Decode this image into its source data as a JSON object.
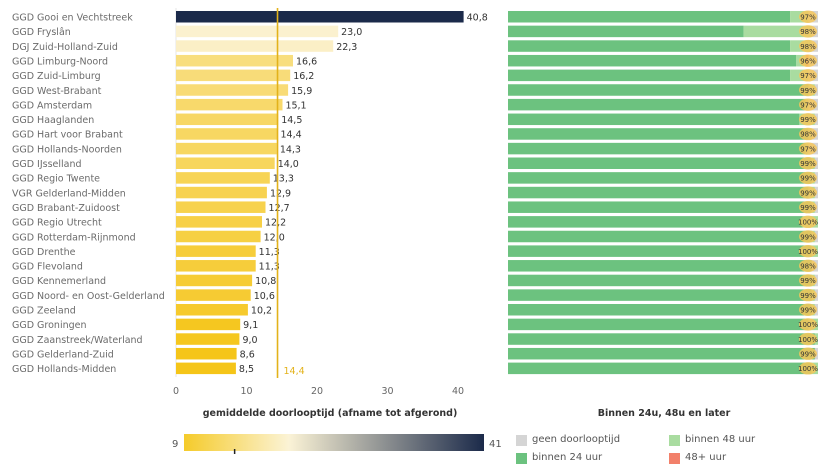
{
  "colors": {
    "gold_light": "#fbf1cf",
    "gold_dark": "#f5c518",
    "navy": "#1b2a4a",
    "avg_line": "#e3b21a",
    "green_dark": "#6cc27f",
    "green_light": "#a9dca0",
    "grey": "#d5d5d5",
    "orange": "#f2806a",
    "pct_circle": "#f6c75a"
  },
  "chart_data": [
    {
      "type": "bar",
      "orientation": "horizontal",
      "xlabel": "gemiddelde doorlooptijd (afname tot afgerond)",
      "xlim": [
        0,
        41
      ],
      "xticks": [
        "0",
        "10",
        "20",
        "30",
        "40"
      ],
      "reference_line": {
        "value": 14.4,
        "label": "14,4"
      },
      "categories": [
        "GGD Gooi en Vechtstreek",
        "GGD Fryslân",
        "DGJ Zuid-Holland-Zuid",
        "GGD Limburg-Noord",
        "GGD Zuid-Limburg",
        "GGD West-Brabant",
        "GGD Amsterdam",
        "GGD Haaglanden",
        "GGD Hart voor Brabant",
        "GGD Hollands-Noorden",
        "GGD IJsselland",
        "GGD Regio Twente",
        "VGR Gelderland-Midden",
        "GGD Brabant-Zuidoost",
        "GGD Regio Utrecht",
        "GGD Rotterdam-Rijnmond",
        "GGD Drenthe",
        "GGD Flevoland",
        "GGD Kennemerland",
        "GGD Noord- en Oost-Gelderland",
        "GGD Zeeland",
        "GGD Groningen",
        "GGD Zaanstreek/Waterland",
        "GGD Gelderland-Zuid",
        "GGD Hollands-Midden"
      ],
      "values": [
        40.8,
        23.0,
        22.3,
        16.6,
        16.2,
        15.9,
        15.1,
        14.5,
        14.4,
        14.3,
        14.0,
        13.3,
        12.9,
        12.7,
        12.2,
        12.0,
        11.3,
        11.3,
        10.8,
        10.6,
        10.2,
        9.1,
        9.0,
        8.6,
        8.5
      ],
      "value_labels": [
        "40,8",
        "23,0",
        "22,3",
        "16,6",
        "16,2",
        "15,9",
        "15,1",
        "14,5",
        "14,4",
        "14,3",
        "14,0",
        "13,3",
        "12,9",
        "12,7",
        "12,2",
        "12,0",
        "11,3",
        "11,3",
        "10,8",
        "10,6",
        "10,2",
        "9,1",
        "9,0",
        "8,6",
        "8,5"
      ],
      "color_scale": {
        "min_label": "9",
        "max_label": "41",
        "min": 9,
        "max": 41,
        "marker_value": 14.4
      }
    },
    {
      "type": "bar",
      "orientation": "horizontal",
      "stacked": true,
      "xlabel": "Binnen 24u, 48u en later",
      "series": [
        {
          "name": "binnen 24 uur",
          "color": "#6cc27f",
          "values": [
            91,
            76,
            91,
            93,
            91,
            97,
            96,
            94,
            97,
            96,
            98,
            98,
            97,
            98,
            95,
            98,
            98,
            98,
            98,
            98,
            98,
            97,
            99,
            99,
            98
          ]
        },
        {
          "name": "binnen 48 uur",
          "color": "#a9dca0",
          "values": [
            6,
            22,
            7,
            3,
            6,
            2,
            1,
            5,
            1,
            1,
            1,
            1,
            2,
            1,
            5,
            1,
            2,
            0,
            1,
            1,
            1,
            3,
            1,
            0,
            2
          ]
        },
        {
          "name": "48+ uur",
          "color": "#f2806a",
          "values": [
            0,
            0,
            0,
            1,
            0,
            0,
            0,
            0,
            0,
            0,
            0,
            0,
            0,
            0,
            0,
            0,
            0,
            0,
            0,
            0,
            0,
            0,
            0,
            0,
            0
          ]
        },
        {
          "name": "geen doorlooptijd",
          "color": "#d5d5d5",
          "values": [
            3,
            2,
            2,
            3,
            3,
            1,
            3,
            1,
            2,
            3,
            1,
            1,
            1,
            1,
            0,
            1,
            0,
            2,
            1,
            1,
            1,
            0,
            0,
            1,
            0
          ]
        }
      ],
      "labels": [
        "97%",
        "98%",
        "98%",
        "96%",
        "97%",
        "99%",
        "97%",
        "99%",
        "98%",
        "97%",
        "99%",
        "99%",
        "99%",
        "99%",
        "100%",
        "99%",
        "100%",
        "98%",
        "99%",
        "99%",
        "99%",
        "100%",
        "100%",
        "99%",
        "100%"
      ]
    }
  ],
  "legend": {
    "geen_doorlooptijd": "geen doorlooptijd",
    "binnen_48": "binnen 48 uur",
    "binnen_24": "binnen 24 uur",
    "plus_48": "48+ uur"
  }
}
